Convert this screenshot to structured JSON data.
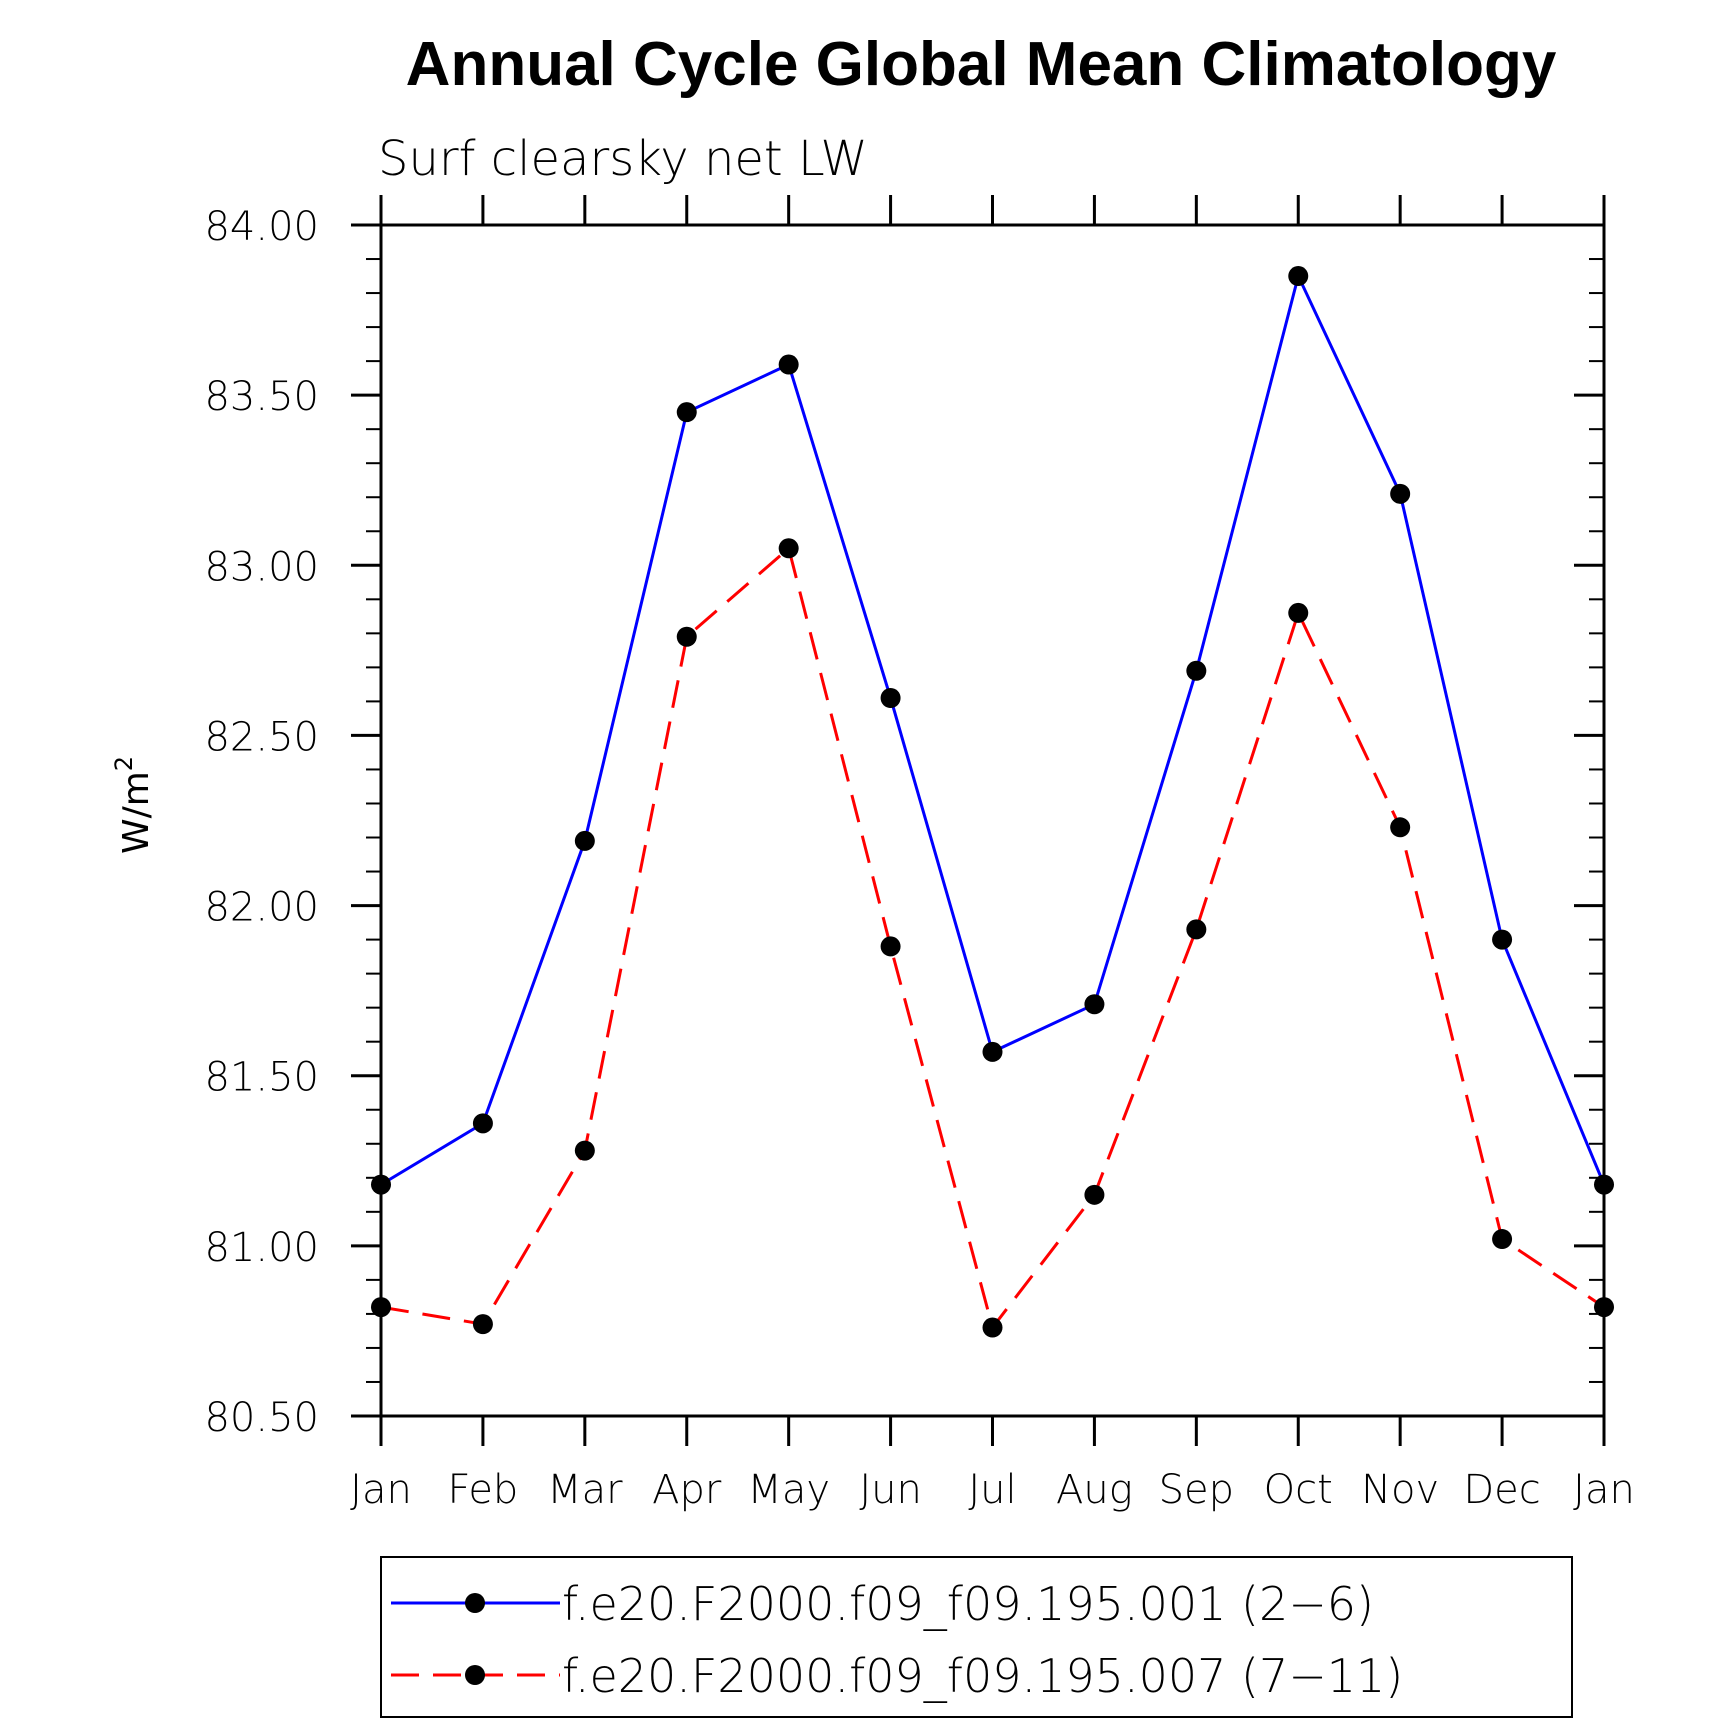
{
  "chart_data": {
    "type": "line",
    "title": "Annual Cycle Global Mean Climatology",
    "subtitle": "Surf clearsky net LW",
    "ylabel": "W/m",
    "ylabel_superscript": "2",
    "ylim": [
      80.5,
      84.0
    ],
    "yticks": [
      "84.00",
      "83.50",
      "83.00",
      "82.50",
      "82.00",
      "81.50",
      "81.00",
      "80.50"
    ],
    "ytick_values": [
      84.0,
      83.5,
      83.0,
      82.5,
      82.0,
      81.5,
      81.0,
      80.5
    ],
    "categories": [
      "Jan",
      "Feb",
      "Mar",
      "Apr",
      "May",
      "Jun",
      "Jul",
      "Aug",
      "Sep",
      "Oct",
      "Nov",
      "Dec",
      "Jan"
    ],
    "grid": false,
    "legend_position": "bottom",
    "series": [
      {
        "name": "f.e20.F2000.f09_f09.195.001 (2−6)",
        "color": "#0000ff",
        "dash": "solid",
        "values": [
          81.18,
          81.36,
          82.19,
          83.45,
          83.59,
          82.61,
          81.57,
          81.71,
          82.69,
          83.85,
          83.21,
          81.9,
          81.18
        ]
      },
      {
        "name": "f.e20.F2000.f09_f09.195.007 (7−11)",
        "color": "#ff0000",
        "dash": "dashed",
        "values": [
          80.82,
          80.77,
          81.28,
          82.79,
          83.05,
          81.88,
          80.76,
          81.15,
          81.93,
          82.86,
          82.23,
          81.02,
          80.82
        ]
      }
    ],
    "marker_color": "#000000"
  }
}
